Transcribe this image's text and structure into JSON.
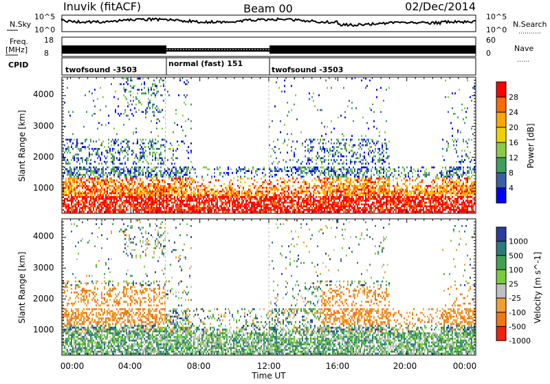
{
  "header": {
    "station": "Inuvik (fitACF)",
    "beam": "Beam 00",
    "date": "02/Dec/2014"
  },
  "panels": {
    "nsky": {
      "label": "N.Sky",
      "ticks": [
        "10^5",
        "10^0"
      ]
    },
    "nsearch": {
      "label": "N.Search",
      "ticks": [
        "10^5",
        "10^0"
      ]
    },
    "freq": {
      "label_line1": "Freq.",
      "label_line2": "[MHz]",
      "ticks": [
        "18",
        "8"
      ]
    },
    "nave": {
      "label": "Nave",
      "ticks": [
        "60",
        "0"
      ]
    },
    "cpid": {
      "label": "CPID",
      "segments": [
        {
          "text": "twofsound -3503",
          "start_hour": 0,
          "end_hour": 6
        },
        {
          "text": "normal (fast) 151",
          "start_hour": 6,
          "end_hour": 12
        },
        {
          "text": "twofsound -3503",
          "start_hour": 12,
          "end_hour": 24
        }
      ]
    }
  },
  "chart_data": [
    {
      "type": "heatmap",
      "title": "",
      "ylabel": "Slant Range [km]",
      "xlabel": "",
      "xlim": [
        0,
        24
      ],
      "ylim": [
        180,
        4600
      ],
      "yticks": [
        "1000",
        "2000",
        "3000",
        "4000"
      ],
      "colorbar": {
        "label": "Power [dB]",
        "ticks": [
          "28",
          "24",
          "20",
          "16",
          "12",
          "8",
          "4"
        ],
        "colors": [
          "#ff0000",
          "#ff6a00",
          "#ffa500",
          "#f0d000",
          "#88cc44",
          "#3f9f5f",
          "#3a5fa6",
          "#0000ff"
        ]
      }
    },
    {
      "type": "heatmap",
      "title": "",
      "ylabel": "Slant Range [km]",
      "xlabel": "Time UT",
      "xlim": [
        0,
        24
      ],
      "ylim": [
        180,
        4600
      ],
      "yticks": [
        "1000",
        "2000",
        "3000",
        "4000"
      ],
      "xticks": [
        "00:00",
        "04:00",
        "08:00",
        "12:00",
        "16:00",
        "20:00",
        "00:00"
      ],
      "colorbar": {
        "label": "Velocity [m s^-1]",
        "ticks": [
          "1000",
          "500",
          "100",
          "25",
          "-25",
          "-100",
          "-500",
          "-1000"
        ],
        "colors": [
          "#2a3c9c",
          "#2e7a7a",
          "#40a050",
          "#78cc3c",
          "#c0c0c0",
          "#f0a030",
          "#f07810",
          "#f02010"
        ]
      }
    }
  ]
}
